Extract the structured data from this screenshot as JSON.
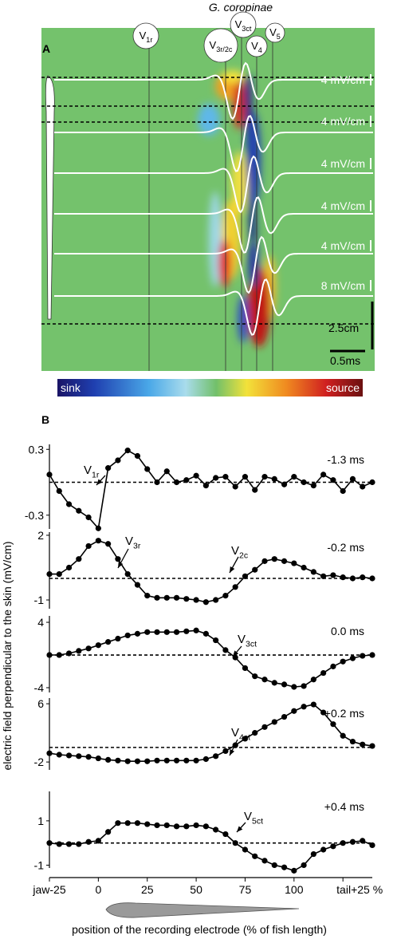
{
  "chart_data": [
    {
      "type": "heatmap",
      "panel_label": "A",
      "title": "G. coropinae",
      "markers": [
        {
          "base": "V",
          "sub": "1r"
        },
        {
          "base": "V",
          "sub": "3r/2c"
        },
        {
          "base": "V",
          "sub": "3ct"
        },
        {
          "base": "V",
          "sub": "4"
        },
        {
          "base": "V",
          "sub": "5"
        }
      ],
      "trace_scales": [
        "4 mV/cm",
        "4 mV/cm",
        "4 mV/cm",
        "4 mV/cm",
        "4 mV/cm",
        "8 mV/cm"
      ],
      "length_scale": "2.5cm",
      "time_scale": "0.5ms",
      "colorbar_labels": [
        "sink",
        "source"
      ]
    },
    {
      "type": "line",
      "panel_label": "B",
      "ylabel": "electric field perpendicular to the skin (mV/cm)",
      "xlabel": "position of the recording electrode (% of fish length)",
      "x": [
        -25,
        -20,
        -15,
        -10,
        -5,
        0,
        5,
        10,
        15,
        20,
        25,
        30,
        35,
        40,
        45,
        50,
        55,
        60,
        65,
        70,
        75,
        80,
        85,
        90,
        95,
        100,
        105,
        110,
        115,
        120,
        125,
        130,
        135,
        140
      ],
      "xlim": [
        -25,
        140
      ],
      "xticks": [
        {
          "value": -25,
          "label": "jaw-25"
        },
        0,
        25,
        50,
        75,
        100,
        {
          "value": 125,
          "label": "tail+25 %"
        }
      ],
      "color": "#000000",
      "subplots": [
        {
          "time": "-1.3 ms",
          "ylim": [
            -0.44,
            0.36
          ],
          "yticks": [
            0.3,
            -0.3
          ],
          "values": [
            0.07,
            -0.08,
            -0.2,
            -0.26,
            -0.32,
            -0.42,
            0.13,
            0.2,
            0.29,
            0.24,
            0.12,
            0.0,
            0.1,
            0.0,
            0.02,
            0.06,
            -0.03,
            0.04,
            0.05,
            -0.04,
            0.05,
            -0.07,
            0.05,
            0.03,
            -0.02,
            0.05,
            0.0,
            -0.03,
            0.07,
            0.02,
            -0.08,
            0.03,
            -0.04,
            0.0
          ],
          "annotations": [
            {
              "base": "V",
              "sub": "1r"
            }
          ]
        },
        {
          "time": "-0.2 ms",
          "ylim": [
            -1.48,
            2.22
          ],
          "yticks": [
            2,
            -1
          ],
          "values": [
            0.2,
            0.2,
            0.5,
            0.9,
            1.5,
            1.75,
            1.6,
            0.9,
            0.2,
            -0.3,
            -0.8,
            -0.9,
            -0.9,
            -0.9,
            -0.95,
            -1.0,
            -1.1,
            -1.0,
            -0.8,
            -0.4,
            0.1,
            0.4,
            0.8,
            0.9,
            0.8,
            0.7,
            0.5,
            0.3,
            0.1,
            0.15,
            0.05,
            0.0,
            0.05,
            0.0
          ],
          "annotations": [
            {
              "base": "V",
              "sub": "3r"
            },
            {
              "base": "V",
              "sub": "2c"
            }
          ]
        },
        {
          "time": "0.0 ms",
          "ylim": [
            -4.78,
            4.98
          ],
          "yticks": [
            4,
            -4
          ],
          "values": [
            0,
            0,
            0.2,
            0.5,
            0.8,
            1.2,
            1.6,
            2.0,
            2.4,
            2.6,
            2.8,
            2.8,
            2.8,
            2.8,
            2.9,
            3.0,
            2.6,
            1.8,
            0.6,
            -0.3,
            -1.6,
            -2.6,
            -3.0,
            -3.4,
            -3.6,
            -3.9,
            -3.8,
            -3.0,
            -2.2,
            -1.4,
            -0.8,
            -0.4,
            -0.1,
            0.0
          ],
          "annotations": [
            {
              "base": "V",
              "sub": "3ct"
            }
          ]
        },
        {
          "time": "+0.2 ms",
          "ylim": [
            -3.3,
            7.0
          ],
          "yticks": [
            6,
            -2
          ],
          "values": [
            -0.8,
            -1.0,
            -1.1,
            -1.2,
            -1.3,
            -1.5,
            -1.7,
            -1.8,
            -1.9,
            -1.9,
            -1.9,
            -1.8,
            -1.8,
            -1.8,
            -1.8,
            -1.8,
            -1.6,
            -1.2,
            -0.5,
            0.3,
            1.2,
            2.0,
            2.8,
            3.5,
            4.2,
            5.0,
            5.6,
            5.9,
            4.8,
            3.2,
            1.6,
            0.8,
            0.4,
            0.2
          ],
          "annotations": [
            {
              "base": "V",
              "sub": "4ct"
            }
          ]
        },
        {
          "time": "+0.4 ms",
          "ylim": [
            -1.2,
            2.4
          ],
          "yticks": [
            1,
            -1
          ],
          "values": [
            0.0,
            -0.05,
            -0.05,
            -0.05,
            0.05,
            0.1,
            0.5,
            0.9,
            0.9,
            0.9,
            0.85,
            0.8,
            0.8,
            0.75,
            0.75,
            0.8,
            0.75,
            0.6,
            0.4,
            0.0,
            -0.3,
            -0.6,
            -0.8,
            -1.0,
            -1.1,
            -1.25,
            -1.0,
            -0.5,
            -0.3,
            -0.15,
            0.0,
            0.05,
            0.1,
            -0.1
          ],
          "annotations": [
            {
              "base": "V",
              "sub": "5ct"
            }
          ]
        }
      ]
    }
  ]
}
